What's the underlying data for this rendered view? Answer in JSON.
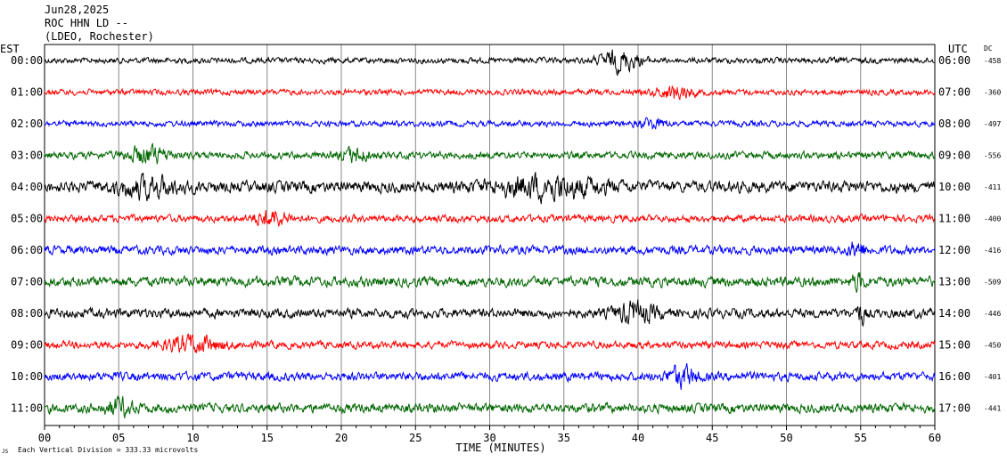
{
  "header": {
    "date": "Jun28,2025",
    "station": "ROC HHN LD --",
    "network": "(LDEO, Rochester)"
  },
  "footer": {
    "scale_mark": "JS",
    "scale": "Each Vertical Division =  333.33 microvolts"
  },
  "chart_data": {
    "type": "line",
    "title": "",
    "left_axis_label": "EST",
    "right_axis_label": "UTC",
    "dc_label": "DC",
    "xlabel": "TIME (MINUTES)",
    "xlim": [
      0,
      60
    ],
    "x_ticks": [
      "00",
      "05",
      "10",
      "15",
      "20",
      "25",
      "30",
      "35",
      "40",
      "45",
      "50",
      "55",
      "60"
    ],
    "grid": true,
    "colors": [
      "#000000",
      "#ff0000",
      "#0000ff",
      "#006600"
    ],
    "rows": [
      {
        "est": "00:00",
        "utc": "06:00",
        "dc": "-458",
        "color": "#000000",
        "amp": 0.8,
        "events": [
          {
            "t": 38.8,
            "w": 1.3,
            "a": 2.7
          }
        ]
      },
      {
        "est": "01:00",
        "utc": "07:00",
        "dc": "-360",
        "color": "#ff0000",
        "amp": 0.8,
        "events": [
          {
            "t": 42.5,
            "w": 1.2,
            "a": 1.8
          }
        ]
      },
      {
        "est": "02:00",
        "utc": "08:00",
        "dc": "-497",
        "color": "#0000ff",
        "amp": 0.8,
        "events": [
          {
            "t": 41.0,
            "w": 1.0,
            "a": 1.2
          }
        ]
      },
      {
        "est": "03:00",
        "utc": "09:00",
        "dc": "-556",
        "color": "#006600",
        "amp": 1.0,
        "events": [
          {
            "t": 7.0,
            "w": 1.4,
            "a": 2.2
          },
          {
            "t": 21.0,
            "w": 1.0,
            "a": 1.8
          }
        ]
      },
      {
        "est": "04:00",
        "utc": "10:00",
        "dc": "-411",
        "color": "#000000",
        "amp": 1.6,
        "events": [
          {
            "t": 7.0,
            "w": 2.0,
            "a": 2.2
          },
          {
            "t": 34.0,
            "w": 3.5,
            "a": 2.6
          }
        ]
      },
      {
        "est": "05:00",
        "utc": "11:00",
        "dc": "-400",
        "color": "#ff0000",
        "amp": 1.0,
        "events": [
          {
            "t": 15.3,
            "w": 1.2,
            "a": 2.0
          }
        ]
      },
      {
        "est": "06:00",
        "utc": "12:00",
        "dc": "-416",
        "color": "#0000ff",
        "amp": 1.2,
        "events": [
          {
            "t": 54.8,
            "w": 0.6,
            "a": 2.0
          }
        ]
      },
      {
        "est": "07:00",
        "utc": "13:00",
        "dc": "-509",
        "color": "#006600",
        "amp": 1.4,
        "events": [
          {
            "t": 54.8,
            "w": 0.4,
            "a": 2.2
          }
        ]
      },
      {
        "est": "08:00",
        "utc": "14:00",
        "dc": "-446",
        "color": "#000000",
        "amp": 1.3,
        "events": [
          {
            "t": 39.8,
            "w": 1.4,
            "a": 2.4
          },
          {
            "t": 55.0,
            "w": 0.3,
            "a": 2.6
          }
        ]
      },
      {
        "est": "09:00",
        "utc": "15:00",
        "dc": "-450",
        "color": "#ff0000",
        "amp": 1.0,
        "events": [
          {
            "t": 10.0,
            "w": 2.0,
            "a": 2.0
          }
        ]
      },
      {
        "est": "10:00",
        "utc": "16:00",
        "dc": "-401",
        "color": "#0000ff",
        "amp": 1.2,
        "events": [
          {
            "t": 43.0,
            "w": 1.0,
            "a": 2.6
          }
        ]
      },
      {
        "est": "11:00",
        "utc": "17:00",
        "dc": "-441",
        "color": "#006600",
        "amp": 1.3,
        "events": [
          {
            "t": 5.0,
            "w": 1.0,
            "a": 2.0
          }
        ]
      }
    ]
  }
}
